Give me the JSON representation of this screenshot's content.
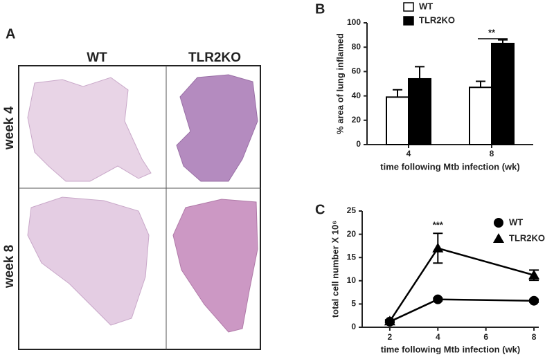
{
  "panel_a": {
    "label": "A",
    "columns": [
      "WT",
      "TLR2KO"
    ],
    "rows": [
      "week 4",
      "week 8"
    ]
  },
  "chart_data": [
    {
      "type": "bar",
      "panel": "B",
      "categories": [
        "4",
        "8"
      ],
      "series": [
        {
          "name": "WT",
          "color": "#ffffff",
          "values": [
            39,
            47
          ],
          "errors": [
            6,
            5
          ]
        },
        {
          "name": "TLR2KO",
          "color": "#000000",
          "values": [
            54,
            83
          ],
          "errors": [
            10,
            3
          ]
        }
      ],
      "ylim": [
        0,
        100
      ],
      "yticks": [
        0,
        20,
        40,
        60,
        80,
        100
      ],
      "ylabel": "% area of lung inflamed",
      "xlabel": "time following Mtb infection (wk)",
      "annotation": "**",
      "legend": "top"
    },
    {
      "type": "line",
      "panel": "C",
      "x": [
        2,
        4,
        8
      ],
      "series": [
        {
          "name": "WT",
          "color": "#000000",
          "marker": "circle",
          "values": [
            1.2,
            6,
            5.7
          ],
          "errors": [
            0.2,
            0.3,
            0.3
          ]
        },
        {
          "name": "TLR2KO",
          "color": "#000000",
          "marker": "triangle",
          "values": [
            1.3,
            17,
            11.2
          ],
          "errors": [
            0.3,
            3.2,
            1.1
          ]
        }
      ],
      "xlim": [
        0.85,
        8.2
      ],
      "xticks": [
        2,
        4,
        6,
        8
      ],
      "ylim": [
        0,
        25
      ],
      "yticks": [
        0,
        5,
        10,
        15,
        20,
        25
      ],
      "ylabel": "total cell number X 10⁶",
      "xlabel": "time following Mtb infection (wk)",
      "annotation": "***",
      "legend": "upper right"
    }
  ]
}
